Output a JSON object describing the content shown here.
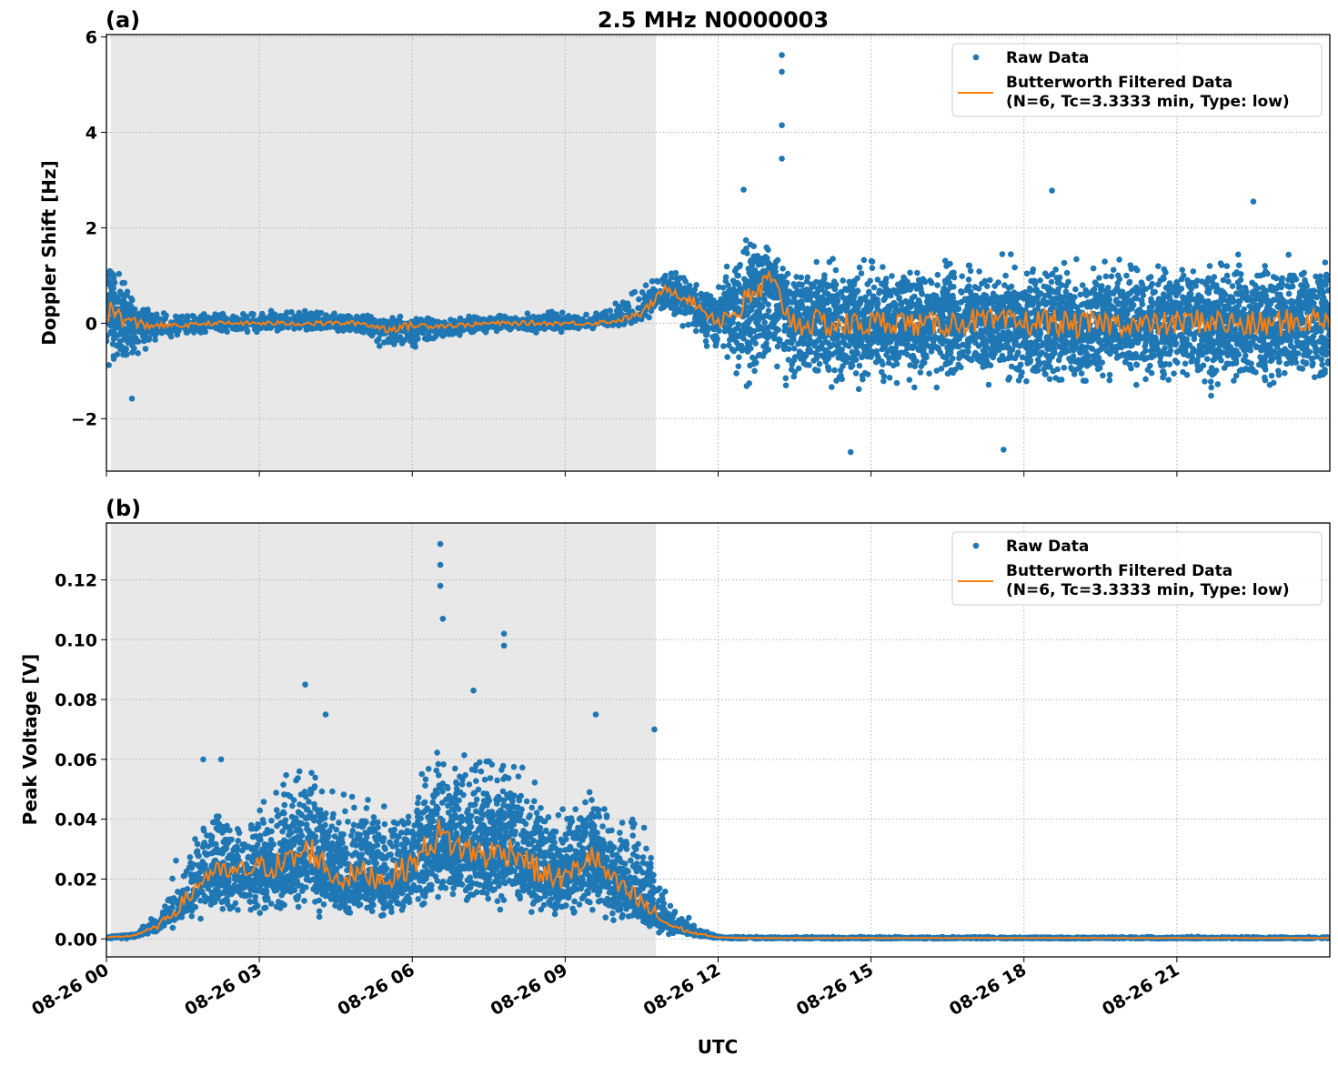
{
  "figure": {
    "title": "2.5 MHz N0000003",
    "xlabel": "UTC",
    "colors": {
      "raw": "#1f77b4",
      "filtered": "#ff7f0e",
      "shade": "#e8e8e8",
      "grid": "#b0b0b0"
    }
  },
  "chart_data": [
    {
      "type": "scatter",
      "panel_label": "(a)",
      "ylabel": "Doppler Shift [Hz]",
      "xlim_hours": [
        0,
        24
      ],
      "ylim": [
        -3.1,
        6.05
      ],
      "yticks": [
        {
          "v": 6,
          "t": "6"
        },
        {
          "v": 4,
          "t": "4"
        },
        {
          "v": 2,
          "t": "2"
        },
        {
          "v": 0,
          "t": "0"
        },
        {
          "v": -2,
          "t": "−2"
        }
      ],
      "xticks": [
        {
          "h": 0,
          "t": "08-26 00"
        },
        {
          "h": 3,
          "t": "08-26 03"
        },
        {
          "h": 6,
          "t": "08-26 06"
        },
        {
          "h": 9,
          "t": "08-26 09"
        },
        {
          "h": 12,
          "t": "08-26 12"
        },
        {
          "h": 15,
          "t": "08-26 15"
        },
        {
          "h": 18,
          "t": "08-26 18"
        },
        {
          "h": 21,
          "t": "08-26 21"
        }
      ],
      "shaded_hours": [
        0.09,
        10.78
      ],
      "grid": true,
      "legend": {
        "placement": "top-right",
        "raw": "Raw Data",
        "filtered_line1": "Butterworth Filtered Data",
        "filtered_line2": "(N=6, Tc=3.3333 min, Type: low)"
      },
      "sample_step_hours": 0.5,
      "filtered": [
        0.3,
        0.0,
        -0.05,
        -0.05,
        0,
        0,
        0,
        0,
        0,
        0,
        0,
        -0.12,
        -0.05,
        -0.05,
        -0.04,
        0,
        0,
        0,
        0,
        0,
        0.05,
        0.2,
        0.75,
        0.45,
        0.05,
        0.35,
        0.9,
        0.0,
        0,
        -0.05,
        0,
        0.05,
        -0.05,
        0,
        0.05,
        0,
        0,
        0.05,
        -0.05,
        0,
        0,
        -0.05,
        0,
        0.05,
        0,
        -0.05,
        0,
        0.05,
        0.1
      ],
      "raw_band": [
        [
          -1.3,
          1.6
        ],
        [
          -0.9,
          0.9
        ],
        [
          -0.4,
          0.3
        ],
        [
          -0.25,
          0.25
        ],
        [
          -0.25,
          0.25
        ],
        [
          -0.25,
          0.25
        ],
        [
          -0.25,
          0.3
        ],
        [
          -0.25,
          0.3
        ],
        [
          -0.25,
          0.35
        ],
        [
          -0.25,
          0.3
        ],
        [
          -0.3,
          0.25
        ],
        [
          -0.8,
          0.2
        ],
        [
          -0.7,
          0.15
        ],
        [
          -0.45,
          0.15
        ],
        [
          -0.35,
          0.2
        ],
        [
          -0.25,
          0.25
        ],
        [
          -0.25,
          0.25
        ],
        [
          -0.25,
          0.3
        ],
        [
          -0.2,
          0.3
        ],
        [
          -0.15,
          0.35
        ],
        [
          -0.1,
          0.5
        ],
        [
          0.0,
          0.9
        ],
        [
          0.1,
          1.3
        ],
        [
          -0.3,
          1.0
        ],
        [
          -1.0,
          0.9
        ],
        [
          -1.8,
          2.2
        ],
        [
          -1.5,
          1.7
        ],
        [
          -1.6,
          1.5
        ],
        [
          -1.6,
          1.6
        ],
        [
          -1.7,
          1.6
        ],
        [
          -1.5,
          1.5
        ],
        [
          -1.5,
          1.5
        ],
        [
          -1.4,
          1.4
        ],
        [
          -1.5,
          1.5
        ],
        [
          -1.5,
          1.5
        ],
        [
          -1.6,
          1.5
        ],
        [
          -1.7,
          1.5
        ],
        [
          -1.6,
          1.6
        ],
        [
          -1.5,
          1.5
        ],
        [
          -1.5,
          1.5
        ],
        [
          -1.4,
          1.5
        ],
        [
          -1.5,
          1.5
        ],
        [
          -1.5,
          1.5
        ],
        [
          -1.6,
          1.5
        ],
        [
          -1.7,
          1.6
        ],
        [
          -1.6,
          1.7
        ],
        [
          -1.6,
          1.6
        ],
        [
          -1.5,
          1.6
        ],
        [
          -1.4,
          1.5
        ]
      ],
      "outliers": [
        [
          13.25,
          5.62
        ],
        [
          13.25,
          5.27
        ],
        [
          13.25,
          4.15
        ],
        [
          13.25,
          3.45
        ],
        [
          18.55,
          2.78
        ],
        [
          14.6,
          -2.7
        ],
        [
          0.5,
          -1.58
        ],
        [
          17.6,
          -2.65
        ],
        [
          12.5,
          2.8
        ],
        [
          22.5,
          2.55
        ]
      ]
    },
    {
      "type": "scatter",
      "panel_label": "(b)",
      "ylabel": "Peak Voltage [V]",
      "xlim_hours": [
        0,
        24
      ],
      "ylim": [
        -0.006,
        0.139
      ],
      "yticks": [
        {
          "v": 0.12,
          "t": "0.12"
        },
        {
          "v": 0.1,
          "t": "0.10"
        },
        {
          "v": 0.08,
          "t": "0.08"
        },
        {
          "v": 0.06,
          "t": "0.06"
        },
        {
          "v": 0.04,
          "t": "0.04"
        },
        {
          "v": 0.02,
          "t": "0.02"
        },
        {
          "v": 0.0,
          "t": "0.00"
        }
      ],
      "xticks": [
        {
          "h": 0,
          "t": "08-26 00"
        },
        {
          "h": 3,
          "t": "08-26 03"
        },
        {
          "h": 6,
          "t": "08-26 06"
        },
        {
          "h": 9,
          "t": "08-26 09"
        },
        {
          "h": 12,
          "t": "08-26 12"
        },
        {
          "h": 15,
          "t": "08-26 15"
        },
        {
          "h": 18,
          "t": "08-26 18"
        },
        {
          "h": 21,
          "t": "08-26 21"
        }
      ],
      "shaded_hours": [
        0.09,
        10.78
      ],
      "grid": true,
      "legend": {
        "placement": "top-right",
        "raw": "Raw Data",
        "filtered_line1": "Butterworth Filtered Data",
        "filtered_line2": "(N=6, Tc=3.3333 min, Type: low)"
      },
      "sample_step_hours": 0.5,
      "filtered": [
        0.0005,
        0.001,
        0.004,
        0.012,
        0.022,
        0.022,
        0.024,
        0.025,
        0.03,
        0.02,
        0.022,
        0.02,
        0.025,
        0.035,
        0.03,
        0.028,
        0.03,
        0.022,
        0.02,
        0.028,
        0.018,
        0.012,
        0.005,
        0.002,
        0.0005,
        0.0003,
        0.0003,
        0.0003,
        0.0003,
        0.0003,
        0.0003,
        0.0003,
        0.0003,
        0.0003,
        0.0003,
        0.0003,
        0.0003,
        0.0003,
        0.0003,
        0.0003,
        0.0003,
        0.0003,
        0.0003,
        0.0003,
        0.0003,
        0.0003,
        0.0003,
        0.0003,
        0.0003
      ],
      "raw_band": [
        [
          0,
          0.001
        ],
        [
          0,
          0.002
        ],
        [
          0.001,
          0.01
        ],
        [
          0.004,
          0.035
        ],
        [
          0.006,
          0.05
        ],
        [
          0.006,
          0.045
        ],
        [
          0.006,
          0.05
        ],
        [
          0.006,
          0.06
        ],
        [
          0.006,
          0.065
        ],
        [
          0.005,
          0.05
        ],
        [
          0.005,
          0.055
        ],
        [
          0.005,
          0.05
        ],
        [
          0.005,
          0.055
        ],
        [
          0.007,
          0.07
        ],
        [
          0.008,
          0.065
        ],
        [
          0.008,
          0.07
        ],
        [
          0.007,
          0.065
        ],
        [
          0.006,
          0.055
        ],
        [
          0.006,
          0.05
        ],
        [
          0.005,
          0.06
        ],
        [
          0.004,
          0.045
        ],
        [
          0.003,
          0.05
        ],
        [
          0.001,
          0.015
        ],
        [
          0,
          0.006
        ],
        [
          0,
          0.001
        ],
        [
          0,
          0.0008
        ],
        [
          0,
          0.0008
        ],
        [
          0,
          0.0008
        ],
        [
          0,
          0.0008
        ],
        [
          0,
          0.0008
        ],
        [
          0,
          0.0008
        ],
        [
          0,
          0.0008
        ],
        [
          0,
          0.0008
        ],
        [
          0,
          0.0008
        ],
        [
          0,
          0.0008
        ],
        [
          0,
          0.0008
        ],
        [
          0,
          0.0008
        ],
        [
          0,
          0.0008
        ],
        [
          0,
          0.0008
        ],
        [
          0,
          0.0008
        ],
        [
          0,
          0.0008
        ],
        [
          0,
          0.0008
        ],
        [
          0,
          0.0008
        ],
        [
          0,
          0.0008
        ],
        [
          0,
          0.0008
        ],
        [
          0,
          0.0008
        ],
        [
          0,
          0.0008
        ],
        [
          0,
          0.0008
        ],
        [
          0,
          0.0008
        ]
      ],
      "outliers": [
        [
          6.55,
          0.132
        ],
        [
          6.55,
          0.125
        ],
        [
          6.55,
          0.118
        ],
        [
          7.8,
          0.102
        ],
        [
          7.8,
          0.098
        ],
        [
          3.9,
          0.085
        ],
        [
          7.2,
          0.083
        ],
        [
          10.75,
          0.07
        ],
        [
          4.3,
          0.075
        ],
        [
          9.6,
          0.075
        ],
        [
          1.9,
          0.06
        ],
        [
          2.25,
          0.06
        ],
        [
          6.6,
          0.107
        ]
      ]
    }
  ]
}
